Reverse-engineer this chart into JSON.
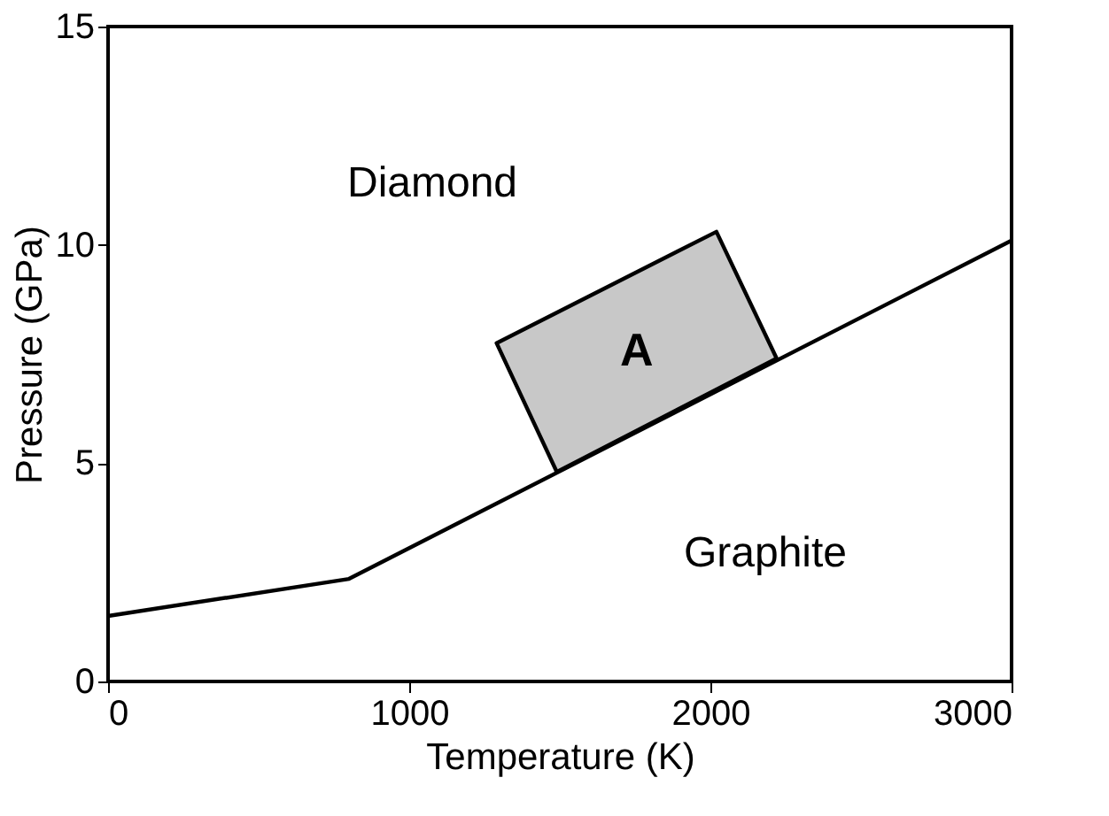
{
  "chart_data": {
    "type": "line",
    "xlabel": "Temperature (K)",
    "ylabel": "Pressure (GPa)",
    "xlim": [
      0,
      3000
    ],
    "xticks": [
      0,
      1000,
      2000,
      3000
    ],
    "ylim": [
      0,
      15
    ],
    "yticks": [
      0,
      5,
      10,
      15
    ],
    "grid": false,
    "marker": "none",
    "line_style": "solid",
    "series": [
      {
        "color": "#000000",
        "x": [
          0,
          800,
          3000
        ],
        "values": [
          1.5,
          2.35,
          10.1
        ]
      },
      {
        "type": "area",
        "name": "A",
        "color": "#c8c8c8",
        "x": [
          1290,
          2020,
          2220,
          1490
        ],
        "values": [
          7.75,
          10.3,
          7.4,
          4.8
        ]
      }
    ],
    "annotations": [
      "Diamond",
      "Graphite"
    ]
  }
}
